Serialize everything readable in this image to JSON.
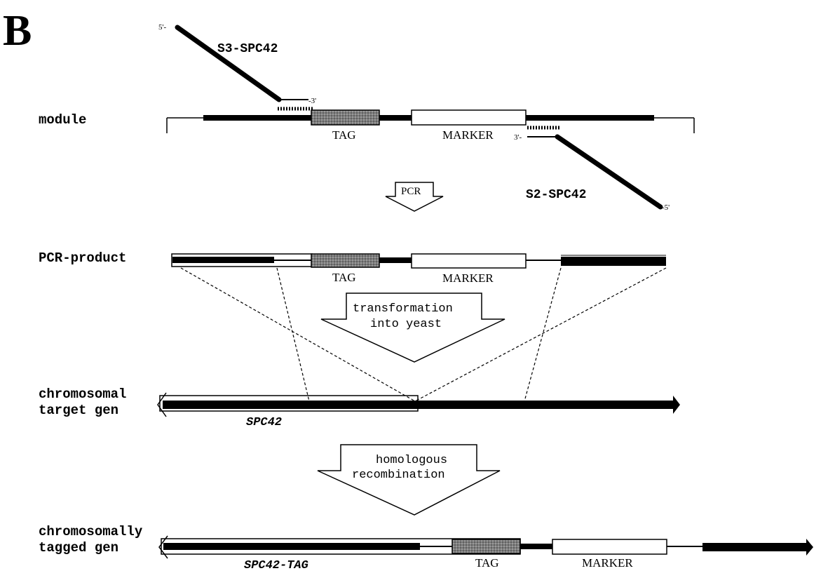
{
  "panel_label": "B",
  "rows": {
    "module": "module",
    "pcr_product": "PCR-product",
    "chromosomal_1": "chromosomal",
    "chromosomal_2": "target gen",
    "tagged_1": "chromosomally",
    "tagged_2": "tagged gen"
  },
  "primers": {
    "s3": "S3-SPC42",
    "s2": "S2-SPC42",
    "s3_five": "5'-",
    "s3_three": "-3'",
    "s2_three": "3'-",
    "s2_five": "-5'"
  },
  "elements": {
    "tag": "TAG",
    "marker": "MARKER"
  },
  "steps": {
    "pcr": "PCR",
    "transform_1": "transformation",
    "transform_2": "into yeast",
    "homologous_1": "homologous",
    "homologous_2": "recombination"
  },
  "genes": {
    "spc42": "SPC42",
    "spc42_tag": "SPC42-TAG"
  },
  "colors": {
    "ink": "#000000",
    "tag_fill": "#8a8a8a",
    "box_fill": "#ffffff"
  }
}
